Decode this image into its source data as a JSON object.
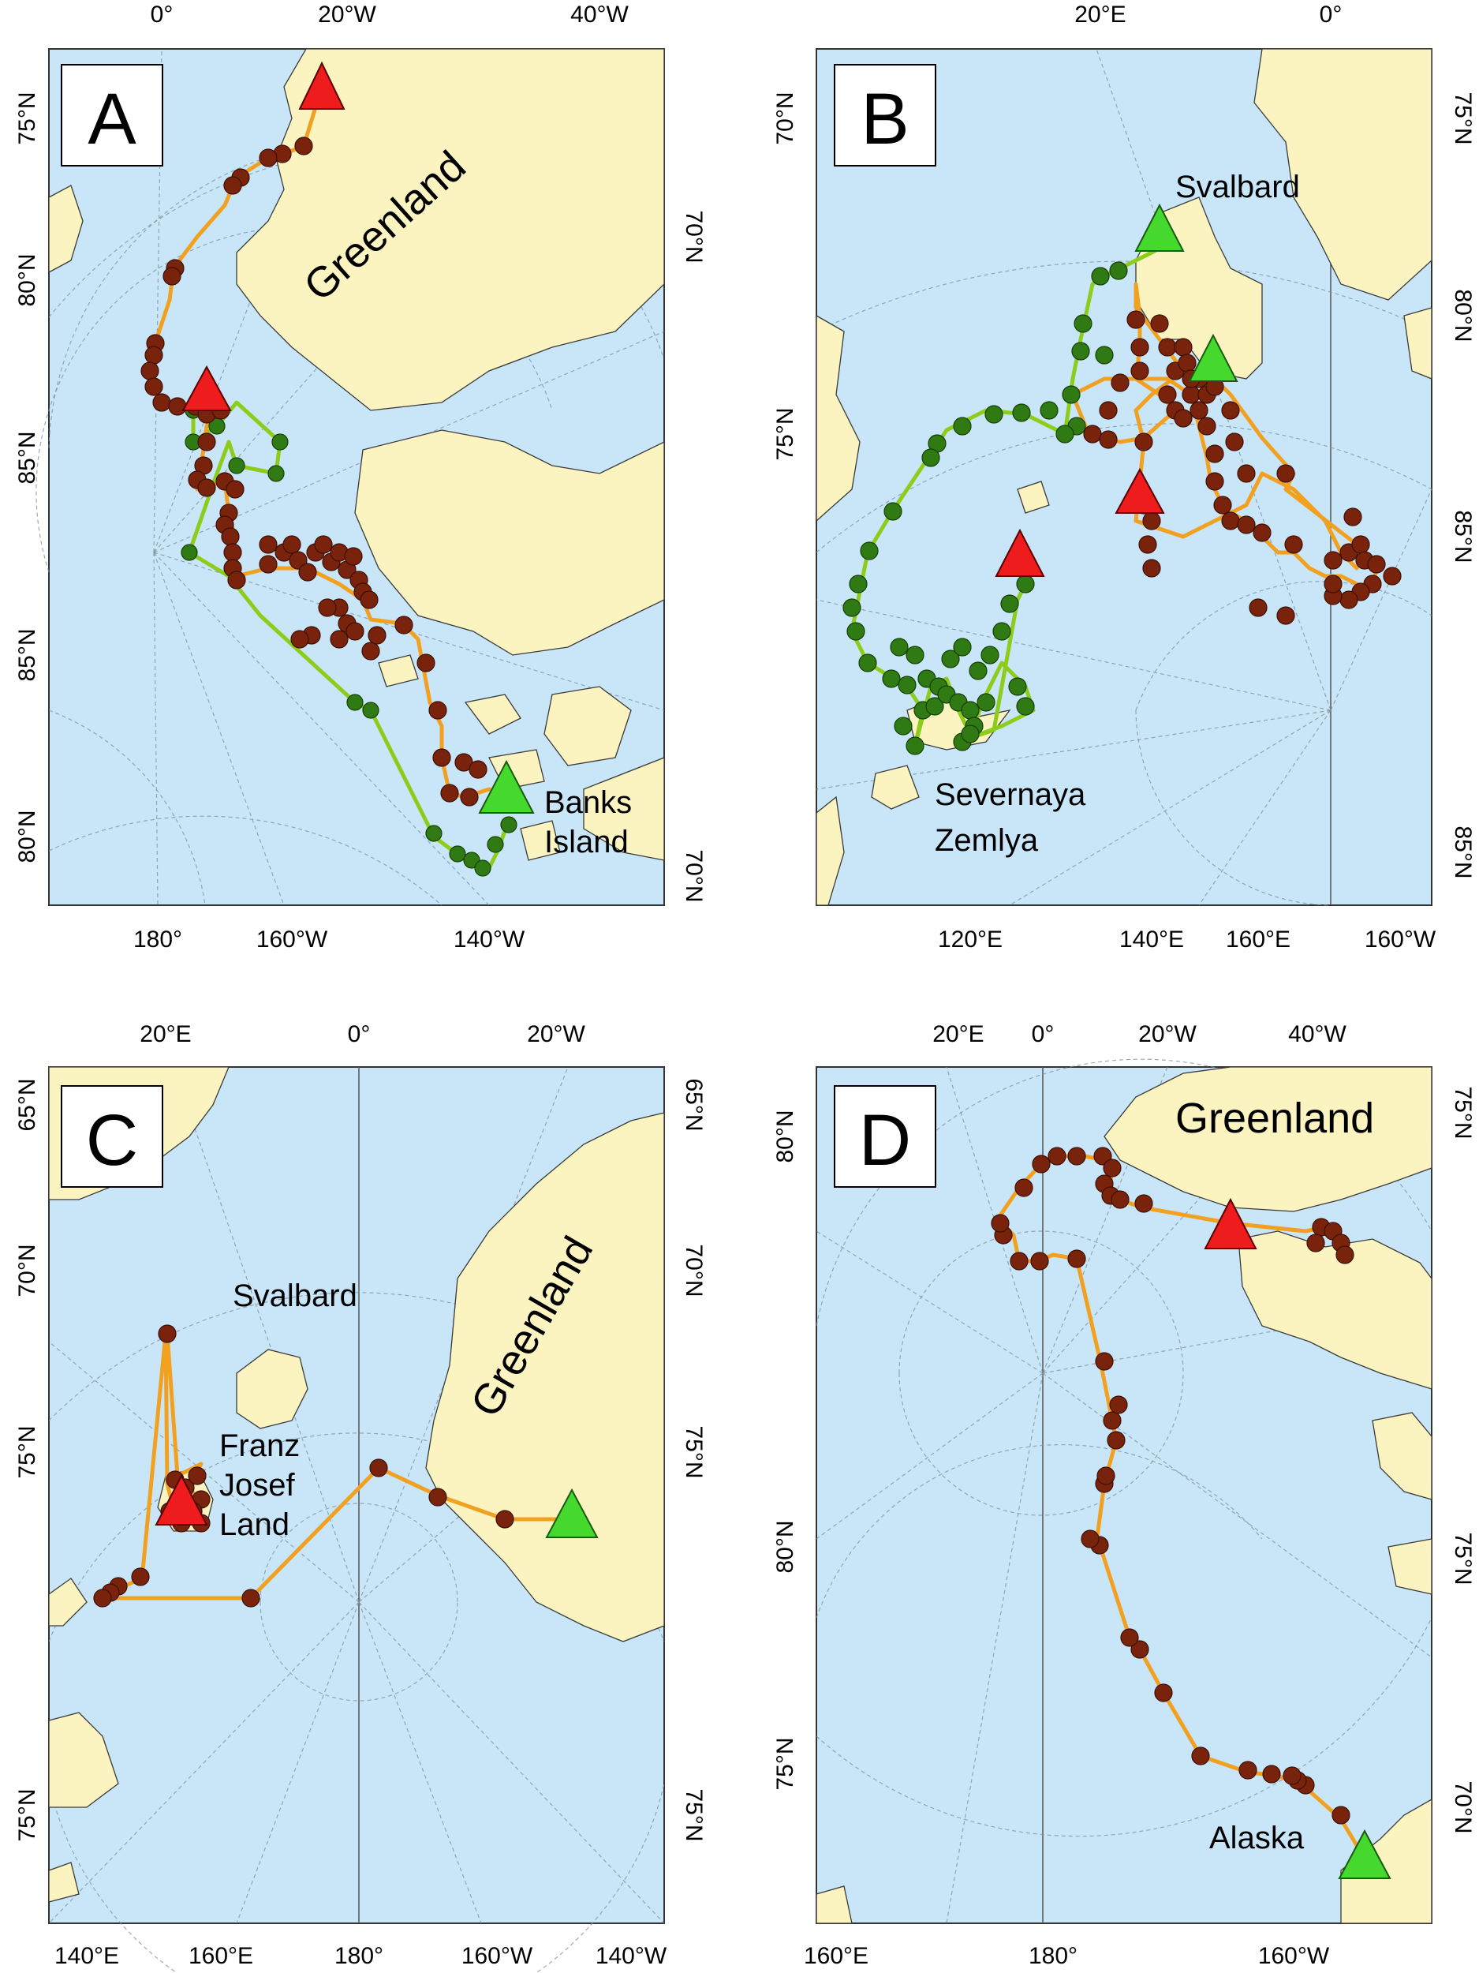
{
  "figure": {
    "panels": [
      {
        "id": "A",
        "letter": "A",
        "labels": {
          "landmass": "Greenland",
          "site_line1": "Banks",
          "site_line2": "Island"
        },
        "ticks": {
          "top": [
            "0°",
            "20°W",
            "40°W"
          ],
          "bottom": [
            "180°",
            "160°W",
            "140°W"
          ],
          "left": [
            "75°N",
            "80°N",
            "85°N",
            "85°N",
            "80°N"
          ],
          "right": [
            "70°N",
            "70°N"
          ]
        }
      },
      {
        "id": "B",
        "letter": "B",
        "labels": {
          "site_top": "Svalbard",
          "site_line1": "Severnaya",
          "site_line2": "Zemlya"
        },
        "ticks": {
          "top": [
            "20°E",
            "0°"
          ],
          "bottom": [
            "120°E",
            "140°E",
            "160°E",
            "160°W"
          ],
          "left": [
            "70°N",
            "75°N"
          ],
          "right": [
            "75°N",
            "80°N",
            "85°N",
            "85°N"
          ]
        }
      },
      {
        "id": "C",
        "letter": "C",
        "labels": {
          "landmass": "Greenland",
          "site_top": "Svalbard",
          "site_line1": "Franz",
          "site_line2": "Josef",
          "site_line3": "Land"
        },
        "ticks": {
          "top": [
            "20°E",
            "0°",
            "20°W"
          ],
          "bottom": [
            "140°E",
            "160°E",
            "180°",
            "160°W",
            "140°W"
          ],
          "left": [
            "65°N",
            "70°N",
            "75°N",
            "75°N"
          ],
          "right": [
            "65°N",
            "70°N",
            "75°N",
            "75°N"
          ]
        }
      },
      {
        "id": "D",
        "letter": "D",
        "labels": {
          "landmass": "Greenland",
          "site_bottom": "Alaska"
        },
        "ticks": {
          "top": [
            "20°E",
            "0°",
            "20°W",
            "40°W"
          ],
          "bottom": [
            "160°E",
            "180°",
            "160°W"
          ],
          "left": [
            "80°N",
            "80°N",
            "75°N"
          ],
          "right": [
            "75°N",
            "75°N",
            "70°N"
          ]
        }
      }
    ],
    "colors": {
      "ocean": "#c8e6f8",
      "land": "#fbf4c0",
      "track_orange": "#f2a020",
      "track_green": "#8ccc1a",
      "point_brown": "#7a230c",
      "point_green": "#2f7a12",
      "start_triangle": "#44d92c",
      "end_triangle": "#ee1c1c"
    }
  }
}
